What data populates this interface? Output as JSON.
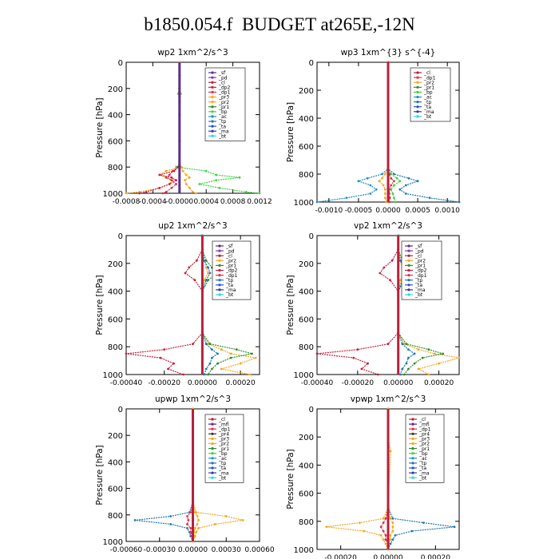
{
  "page": {
    "title": "b1850.054.f  BUDGET at265E,-12N"
  },
  "colors": {
    "_sf": "#5a2d91",
    "_pd": "#7a3fb0",
    "_cl": "#b8203a",
    "_mfl": "#6a1a8a",
    "_dp1": "#e0304a",
    "_dp2": "#c8203c",
    "_dp4": "#c8203c",
    "_pr1": "#2f8f2f",
    "_pr2": "#f5a623",
    "_pr3": "#f5a623",
    "_bp": "#3fd13f",
    "_ac": "#1e90c8",
    "_tp": "#1f77b4",
    "_ta": "#2a4fd6",
    "_ma": "#2a3fa0",
    "_bt": "#30d0e0"
  },
  "chart_data": [
    {
      "type": "line",
      "title": "wp2   1xm^2/s^3",
      "ylabel": "Pressure  [hPa]",
      "ylim": [
        1000,
        0
      ],
      "xlim": [
        -0.0008,
        0.0012
      ],
      "xticks": [
        -0.0008,
        -0.0004,
        0,
        0.0004,
        0.0008,
        0.0012
      ],
      "xticklabels": [
        "-0.0008",
        "-0.0004",
        "-0.0000",
        "0.0004",
        "0.0008",
        "0.0012"
      ],
      "yticks": [
        0,
        200,
        400,
        600,
        800,
        1000
      ],
      "yticklabels": [
        "0",
        "200",
        "400",
        "600",
        "800",
        "1000"
      ],
      "legend": [
        "_sf",
        "_pd",
        "_cl",
        "_dp2",
        "_dp1",
        "_pr3",
        "_pr2",
        "_pr1",
        "_bp",
        "_ac",
        "_tp",
        "_ta",
        "_ma",
        "_bt"
      ],
      "pressure": [
        0,
        100,
        200,
        240,
        260,
        300,
        400,
        600,
        780,
        800,
        830,
        860,
        880,
        900,
        930,
        960,
        990,
        1000
      ],
      "series": [
        {
          "name": "_bp",
          "values": [
            0,
            0,
            0,
            -2e-05,
            0,
            0,
            0,
            0,
            0,
            -5e-05,
            0.0004,
            0.00055,
            0.0009,
            0.00055,
            0.0003,
            0.0006,
            0.001,
            0.0012
          ]
        },
        {
          "name": "_pr3",
          "values": [
            0,
            0,
            0,
            2e-05,
            0,
            0,
            0,
            0,
            0,
            3e-05,
            -0.0002,
            -0.0003,
            -0.0002,
            -0.0001,
            -0.00015,
            -0.0003,
            -0.0006,
            -0.0008
          ]
        },
        {
          "name": "_dp1",
          "values": [
            0,
            0,
            0,
            0,
            0,
            0,
            0,
            0,
            0,
            -2e-05,
            -0.0001,
            -0.00015,
            -0.0002,
            -0.00012,
            -5e-05,
            -0.00012,
            -0.0002,
            -0.00025
          ]
        },
        {
          "name": "_dp2",
          "values": [
            0,
            0,
            0,
            0,
            0,
            0,
            0,
            0,
            0,
            -2e-05,
            -8e-05,
            -0.0003,
            -0.00012,
            -5e-05,
            -0.00015,
            -0.0003,
            -0.0005,
            -0.0006
          ]
        },
        {
          "name": "_pr2",
          "values": [
            0,
            0,
            0,
            2e-05,
            0,
            0,
            0,
            0,
            0,
            2e-05,
            5e-05,
            0.0001,
            0.00015,
            8e-05,
            0.0001,
            0.00015,
            0.0002,
            0.00025
          ]
        },
        {
          "name": "_sf",
          "values": [
            0,
            0,
            0,
            0,
            0,
            0,
            0,
            0,
            0,
            0,
            0,
            0,
            0,
            0,
            0,
            0,
            0,
            0
          ]
        }
      ]
    },
    {
      "type": "line",
      "title": "wp3   1xm^{3} s^{-4}",
      "ylabel": "Pressure  [hPa]",
      "ylim": [
        1000,
        0
      ],
      "xlim": [
        -0.0012,
        0.0012
      ],
      "xticks": [
        -0.001,
        -0.0005,
        0,
        0.0005,
        0.001
      ],
      "xticklabels": [
        "-0.0010",
        "-0.0005",
        "0.0000",
        "0.0005",
        "0.0010"
      ],
      "yticks": [
        0,
        200,
        400,
        600,
        800,
        1000
      ],
      "yticklabels": [
        "0",
        "200",
        "400",
        "600",
        "800",
        "1000"
      ],
      "legend": [
        "_cl",
        "_dp1",
        "_pr2",
        "_pr1",
        "_bp",
        "_ac",
        "_tp",
        "_ta",
        "_ma",
        "_bt"
      ],
      "pressure": [
        0,
        100,
        300,
        600,
        760,
        800,
        830,
        850,
        880,
        910,
        940,
        970,
        1000
      ],
      "series": [
        {
          "name": "_tp",
          "values": [
            0,
            0,
            0,
            0,
            0,
            0.0001,
            0.00035,
            0.0005,
            0.0003,
            0.0002,
            0.0003,
            0.0007,
            0.0012
          ]
        },
        {
          "name": "_ac",
          "values": [
            0,
            0,
            0,
            0,
            0,
            -0.0001,
            -0.00035,
            -0.0005,
            -0.0003,
            -0.0002,
            -0.0003,
            -0.0007,
            -0.0012
          ]
        },
        {
          "name": "_bp",
          "values": [
            0,
            0,
            0,
            0,
            0,
            5e-05,
            0.00015,
            0.0002,
            0.0001,
            5e-05,
            8e-05,
            0.0001,
            0.00012
          ]
        },
        {
          "name": "_pr2",
          "values": [
            0,
            0,
            0,
            0,
            0,
            -5e-05,
            -0.0001,
            -0.00015,
            -8e-05,
            -5e-05,
            -5e-05,
            -5e-05,
            -3e-05
          ]
        },
        {
          "name": "_dp1",
          "values": [
            0,
            0,
            0,
            0,
            0,
            2e-05,
            5e-05,
            0.0001,
            5e-05,
            2e-05,
            2e-05,
            3e-05,
            2e-05
          ]
        },
        {
          "name": "_cl",
          "values": [
            0,
            0,
            0,
            0,
            0,
            0,
            0,
            0,
            0,
            0,
            0,
            0,
            0
          ]
        }
      ]
    },
    {
      "type": "line",
      "title": "up2   1xm^2/s^3",
      "ylabel": "Pressure  [hPa]",
      "ylim": [
        1000,
        0
      ],
      "xlim": [
        -0.0004,
        0.0003
      ],
      "xticks": [
        -0.0004,
        -0.0002,
        0,
        0.0002
      ],
      "xticklabels": [
        "-0.00040",
        "-0.00020",
        "0.00000",
        "0.00020"
      ],
      "yticks": [
        0,
        200,
        400,
        600,
        800,
        1000
      ],
      "yticklabels": [
        "0",
        "200",
        "400",
        "600",
        "800",
        "1000"
      ],
      "legend": [
        "_sf",
        "_pd",
        "_cl",
        "_pr2",
        "_pr1",
        "_dp2",
        "_dp1",
        "_tp",
        "_ta",
        "_ma",
        "_bt"
      ],
      "pressure": [
        0,
        100,
        180,
        230,
        270,
        320,
        400,
        700,
        780,
        820,
        850,
        880,
        920,
        960,
        1000
      ],
      "series": [
        {
          "name": "_dp2",
          "values": [
            0,
            0,
            -3e-05,
            -7e-05,
            -9e-05,
            -4e-05,
            0,
            0,
            -5e-05,
            -0.0002,
            -0.0004,
            -0.00022,
            -0.00015,
            -0.00018,
            -0.0001
          ]
        },
        {
          "name": "_pr2",
          "values": [
            0,
            0,
            1e-05,
            2e-05,
            3e-05,
            1e-05,
            0,
            0,
            3e-05,
            0.0001,
            0.00015,
            0.00028,
            0.0002,
            0.0001,
            0.00025
          ]
        },
        {
          "name": "_pr1",
          "values": [
            0,
            0,
            2e-05,
            5e-05,
            8e-05,
            3e-05,
            0,
            0,
            4e-05,
            0.00018,
            0.00026,
            0.00015,
            8e-05,
            5e-05,
            3e-05
          ]
        },
        {
          "name": "_tp",
          "values": [
            0,
            0,
            1e-05,
            3e-05,
            4e-05,
            2e-05,
            0,
            0,
            2e-05,
            5e-05,
            8e-05,
            5e-05,
            4e-05,
            2e-05,
            1e-05
          ]
        },
        {
          "name": "_cl",
          "values": [
            0,
            0,
            0,
            0,
            0,
            0,
            0,
            0,
            0,
            0,
            0,
            0,
            0,
            0,
            0
          ]
        }
      ]
    },
    {
      "type": "line",
      "title": "vp2   1xm^2/s^3",
      "ylabel": "Pressure  [hPa]",
      "ylim": [
        1000,
        0
      ],
      "xlim": [
        -0.0004,
        0.0003
      ],
      "xticks": [
        -0.0004,
        -0.0002,
        0,
        0.0002
      ],
      "xticklabels": [
        "-0.00040",
        "-0.00020",
        "0.00000",
        "0.00020"
      ],
      "yticks": [
        0,
        200,
        400,
        600,
        800,
        1000
      ],
      "yticklabels": [
        "0",
        "200",
        "400",
        "600",
        "800",
        "1000"
      ],
      "legend": [
        "_sf",
        "_pd",
        "_cl",
        "_pr2",
        "_pr1",
        "_dp2",
        "_dp1",
        "_tp",
        "_ta",
        "_ma",
        "_bt"
      ],
      "pressure": [
        0,
        100,
        180,
        230,
        270,
        320,
        400,
        700,
        780,
        820,
        850,
        880,
        920,
        960,
        1000
      ],
      "series": [
        {
          "name": "_dp2",
          "values": [
            0,
            0,
            -3e-05,
            -7e-05,
            -9e-05,
            -4e-05,
            0,
            0,
            -5e-05,
            -0.0002,
            -0.0004,
            -0.00022,
            -0.00015,
            -0.00018,
            -0.0001
          ]
        },
        {
          "name": "_pr2",
          "values": [
            0,
            0,
            1e-05,
            2e-05,
            3e-05,
            1e-05,
            0,
            0,
            3e-05,
            0.0001,
            0.00018,
            0.0003,
            0.0002,
            0.0001,
            0.00015
          ]
        },
        {
          "name": "_pr1",
          "values": [
            0,
            0,
            2e-05,
            5e-05,
            8e-05,
            3e-05,
            0,
            0,
            4e-05,
            0.00015,
            0.00022,
            0.00012,
            8e-05,
            5e-05,
            3e-05
          ]
        },
        {
          "name": "_tp",
          "values": [
            0,
            0,
            1e-05,
            3e-05,
            4e-05,
            2e-05,
            0,
            0,
            2e-05,
            5e-05,
            8e-05,
            5e-05,
            4e-05,
            2e-05,
            1e-05
          ]
        },
        {
          "name": "_cl",
          "values": [
            0,
            0,
            0,
            0,
            0,
            0,
            0,
            0,
            0,
            0,
            0,
            0,
            0,
            0,
            0
          ]
        }
      ]
    },
    {
      "type": "line",
      "title": "upwp   1xm^2/s^3",
      "ylabel": "Pressure  [hPa]",
      "ylim": [
        1000,
        0
      ],
      "xlim": [
        -0.0006,
        0.0006
      ],
      "xticks": [
        -0.0006,
        -0.0003,
        0,
        0.0003,
        0.0006
      ],
      "xticklabels": [
        "-0.00060",
        "-0.00030",
        "0.00000",
        "0.00030",
        "0.00060"
      ],
      "yticks": [
        0,
        200,
        400,
        600,
        800,
        1000
      ],
      "yticklabels": [
        "0",
        "200",
        "400",
        "600",
        "800",
        "1000"
      ],
      "legend": [
        "_cl",
        "_mfl",
        "_dp1",
        "_pr4",
        "_pr3",
        "_pr2",
        "_pr1",
        "_bp",
        "_ac",
        "_tp",
        "_ta",
        "_ma",
        "_bt"
      ],
      "pressure": [
        0,
        200,
        700,
        780,
        810,
        840,
        870,
        900,
        930,
        960,
        1000
      ],
      "series": [
        {
          "name": "_tp",
          "values": [
            0,
            0,
            0,
            -3e-05,
            -0.0002,
            -0.00052,
            -0.0002,
            -5e-05,
            -3e-05,
            -2e-05,
            0
          ]
        },
        {
          "name": "_pr2",
          "values": [
            0,
            0,
            0,
            3e-05,
            0.0003,
            0.00045,
            0.0002,
            5e-05,
            3e-05,
            2e-05,
            0
          ]
        },
        {
          "name": "_dp1",
          "values": [
            0,
            0,
            0,
            -2e-05,
            -5e-05,
            -4e-05,
            -5e-05,
            -2e-05,
            -2e-05,
            -1e-05,
            0
          ]
        },
        {
          "name": "_pr3",
          "values": [
            0,
            0,
            0,
            2e-05,
            4e-05,
            5e-05,
            4e-05,
            2e-05,
            1e-05,
            1e-05,
            0
          ]
        },
        {
          "name": "_cl",
          "values": [
            0,
            0,
            0,
            0,
            0,
            0,
            0,
            0,
            0,
            0,
            0
          ]
        }
      ]
    },
    {
      "type": "line",
      "title": "vpwp   1xm^2/s^3",
      "ylabel": "Pressure  [hPa]",
      "ylim": [
        1000,
        0
      ],
      "xlim": [
        -0.0003,
        0.0003
      ],
      "xticks": [
        -0.0002,
        0,
        0.0002
      ],
      "xticklabels": [
        "-0.00020",
        "0.00000",
        "0.00020"
      ],
      "yticks": [
        0,
        200,
        400,
        600,
        800,
        1000
      ],
      "yticklabels": [
        "0",
        "200",
        "400",
        "600",
        "800",
        "1000"
      ],
      "legend": [
        "_cl",
        "_mfl",
        "_dp1",
        "_pr4",
        "_pr3",
        "_pr2",
        "_pr1",
        "_bp",
        "_ac",
        "_tp",
        "_ta",
        "_ma",
        "_bt"
      ],
      "pressure": [
        0,
        200,
        300,
        700,
        780,
        810,
        840,
        870,
        900,
        930,
        960,
        1000
      ],
      "series": [
        {
          "name": "_tp",
          "values": [
            0,
            0,
            0,
            0,
            2e-05,
            0.00015,
            0.00028,
            0.0001,
            3e-05,
            2e-05,
            1e-05,
            0
          ]
        },
        {
          "name": "_pr2",
          "values": [
            0,
            0,
            0,
            0,
            -2e-05,
            -0.00012,
            -0.00026,
            -0.0001,
            -3e-05,
            -2e-05,
            -1e-05,
            0
          ]
        },
        {
          "name": "_dp1",
          "values": [
            0,
            0,
            0,
            0,
            -1e-05,
            -2e-05,
            -3e-05,
            -2e-05,
            -1e-05,
            -1e-05,
            0,
            0
          ]
        },
        {
          "name": "_pr3",
          "values": [
            0,
            0,
            1e-05,
            0,
            1e-05,
            2e-05,
            2e-05,
            2e-05,
            1e-05,
            1e-05,
            0,
            0
          ]
        },
        {
          "name": "_cl",
          "values": [
            0,
            0,
            0,
            0,
            0,
            0,
            0,
            0,
            0,
            0,
            0,
            0
          ]
        }
      ]
    }
  ]
}
